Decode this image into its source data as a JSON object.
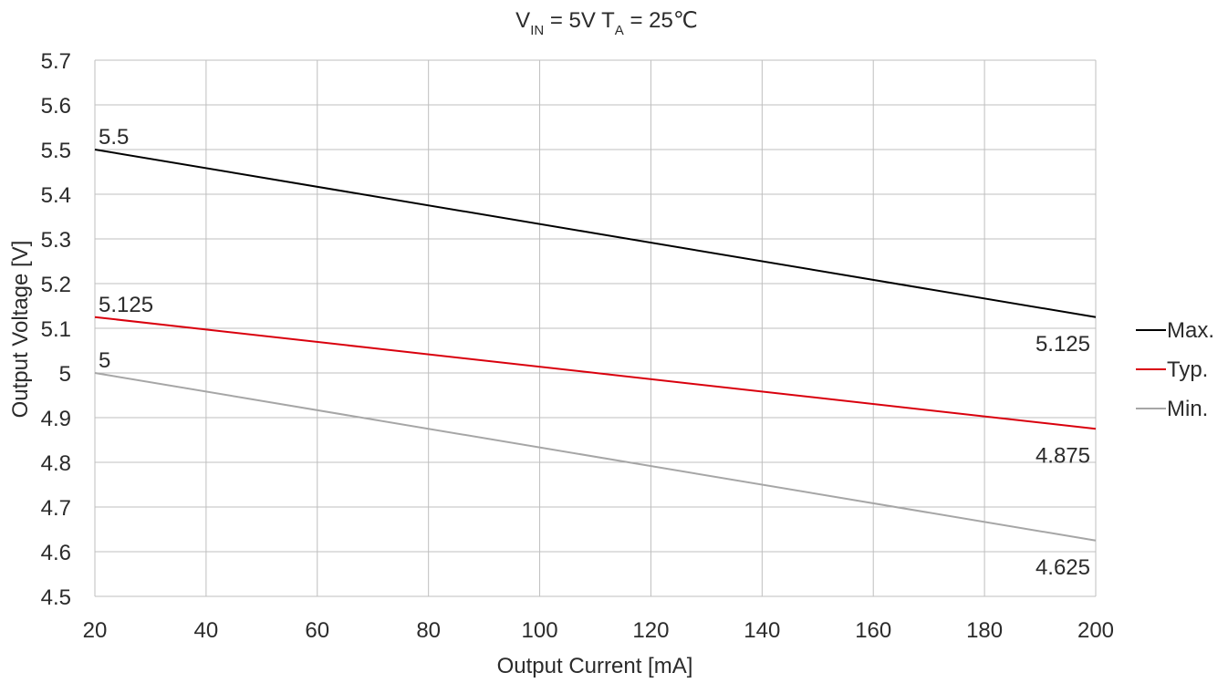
{
  "chart_data": {
    "type": "line",
    "title": {
      "v_main": "V",
      "v_sub": "IN",
      "mid": " = 5V  T",
      "t_sub": "A",
      "end": " = 25℃"
    },
    "xlabel": "Output Current [mA]",
    "ylabel": "Output Voltage [V]",
    "xlim": [
      20,
      200
    ],
    "ylim": [
      4.5,
      5.7
    ],
    "x_ticks": [
      "20",
      "40",
      "60",
      "80",
      "100",
      "120",
      "140",
      "160",
      "180",
      "200"
    ],
    "y_ticks": [
      "4.5",
      "4.6",
      "4.7",
      "4.8",
      "4.9",
      "5",
      "5.1",
      "5.2",
      "5.3",
      "5.4",
      "5.5",
      "5.6",
      "5.7"
    ],
    "grid": true,
    "legend_position": "right",
    "x": [
      20,
      200
    ],
    "series": [
      {
        "name": "Max.",
        "color": "#000000",
        "values": [
          5.5,
          5.125
        ],
        "start_label": "5.5",
        "end_label": "5.125"
      },
      {
        "name": "Typ.",
        "color": "#d9000d",
        "values": [
          5.125,
          4.875
        ],
        "start_label": "5.125",
        "end_label": "4.875"
      },
      {
        "name": "Min.",
        "color": "#a6a6a6",
        "values": [
          5.0,
          4.625
        ],
        "start_label": "5",
        "end_label": "4.625"
      }
    ]
  }
}
